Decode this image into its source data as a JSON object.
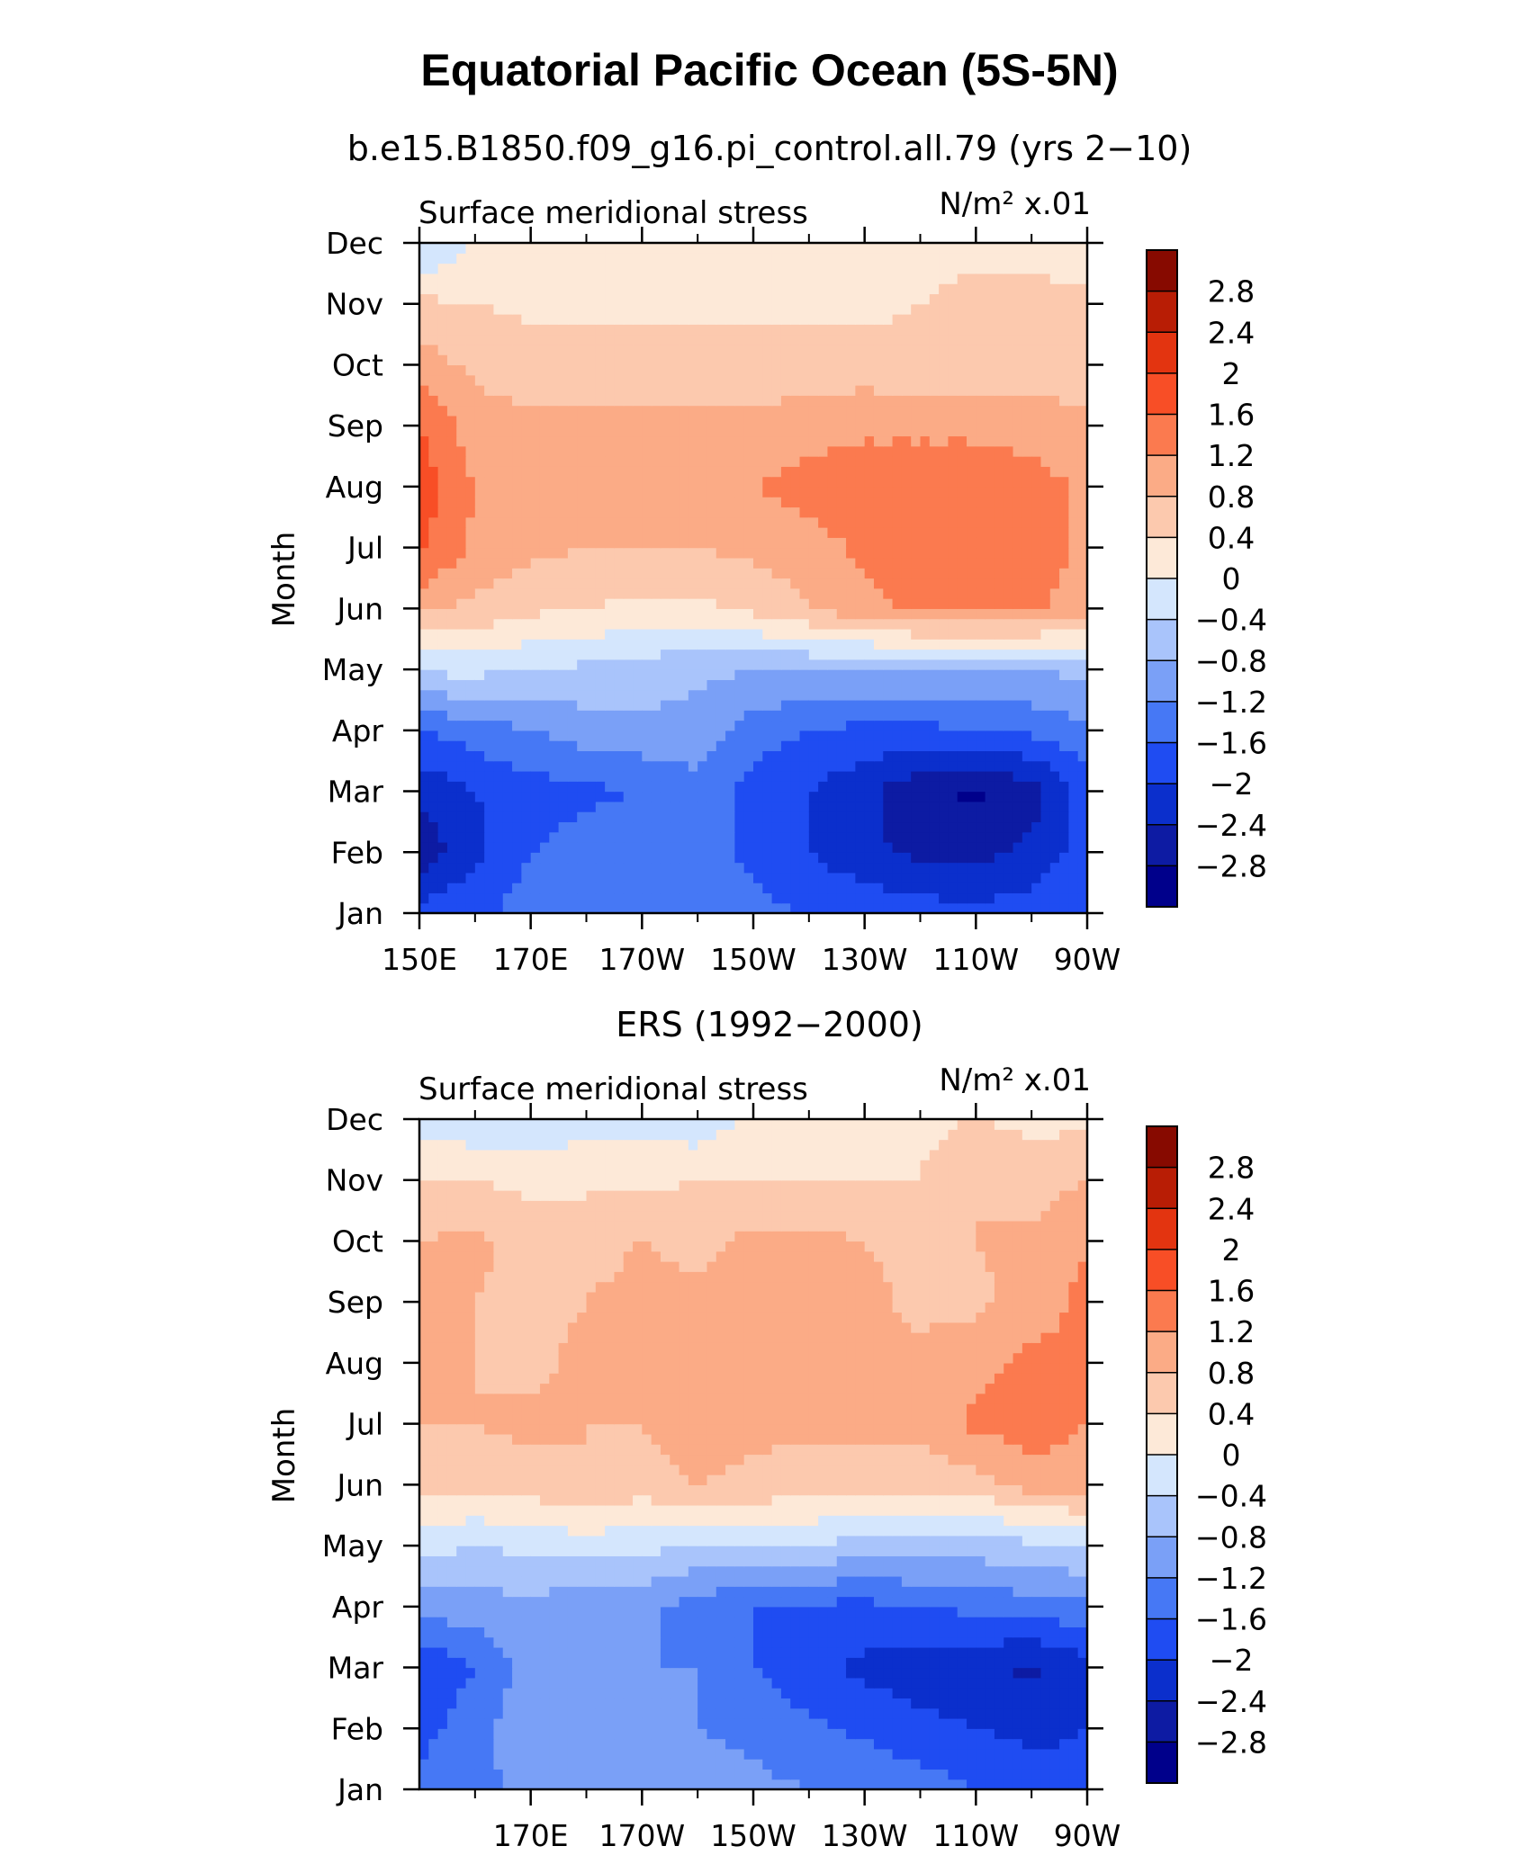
{
  "title": "Equatorial Pacific Ocean (5S-5N)",
  "colors": [
    "#00008b",
    "#0d1ba3",
    "#0b2fcc",
    "#1f4cf2",
    "#4678f5",
    "#7aa0f7",
    "#a9c4fb",
    "#d4e6fd",
    "#fde9d8",
    "#fcc9ae",
    "#fbab86",
    "#fb7a4f",
    "#f84e26",
    "#e33410",
    "#b81d05",
    "#870a00"
  ],
  "chart_data": [
    {
      "type": "heatmap",
      "subtitle": "b.e15.B1850.f09_g16.pi_control.all.79 (yrs 2−10)",
      "left_label": "Surface meridional stress",
      "units": "N/m² x.01",
      "ylabel": "Month",
      "xlabel": "",
      "x_ticks": [
        "150E",
        "170E",
        "170W",
        "150W",
        "130W",
        "110W",
        "90W"
      ],
      "x_tick_lon": [
        150,
        170,
        190,
        210,
        230,
        250,
        270
      ],
      "y_ticks": [
        "Jan",
        "Feb",
        "Mar",
        "Apr",
        "May",
        "Jun",
        "Jul",
        "Aug",
        "Sep",
        "Oct",
        "Nov",
        "Dec"
      ],
      "xlim": [
        150,
        270
      ],
      "ylim": [
        1,
        12
      ],
      "colorbar_levels": [
        "2.8",
        "2.4",
        "2",
        "1.6",
        "1.2",
        "0.8",
        "0.4",
        "0",
        "−0.4",
        "−0.8",
        "−1.2",
        "−1.6",
        "−2",
        "−2.4",
        "−2.8"
      ],
      "lons": [
        150,
        160,
        170,
        180,
        190,
        200,
        210,
        220,
        230,
        240,
        250,
        260,
        270
      ],
      "values": [
        [
          -1.8,
          -1.7,
          -1.4,
          -1.3,
          -1.2,
          -1.3,
          -1.5,
          -1.6,
          -1.7,
          -1.8,
          -1.9,
          -1.8,
          -1.6
        ],
        [
          -2.7,
          -2.1,
          -1.6,
          -1.4,
          -1.3,
          -1.4,
          -1.7,
          -2.0,
          -2.3,
          -2.5,
          -2.5,
          -2.3,
          -1.8
        ],
        [
          -2.3,
          -2.0,
          -1.8,
          -1.7,
          -1.6,
          -1.3,
          -1.8,
          -2.0,
          -2.3,
          -2.7,
          -2.9,
          -2.6,
          -1.8
        ],
        [
          -1.6,
          -1.4,
          -1.2,
          -1.0,
          -0.9,
          -1.0,
          -1.4,
          -1.6,
          -1.7,
          -1.7,
          -1.6,
          -1.5,
          -1.3
        ],
        [
          -0.3,
          -0.3,
          -0.4,
          -0.5,
          -0.6,
          -0.7,
          -0.8,
          -0.8,
          -0.8,
          -0.8,
          -0.8,
          -0.8,
          -0.7
        ],
        [
          0.9,
          0.7,
          0.5,
          0.4,
          0.3,
          0.3,
          0.5,
          0.8,
          1.1,
          1.3,
          1.3,
          1.3,
          1.0
        ],
        [
          1.7,
          1.1,
          0.9,
          0.8,
          0.8,
          0.8,
          0.9,
          1.0,
          1.3,
          1.4,
          1.4,
          1.4,
          1.1
        ],
        [
          1.8,
          1.2,
          1.0,
          1.0,
          1.0,
          1.0,
          1.2,
          1.4,
          1.5,
          1.5,
          1.5,
          1.4,
          1.1
        ],
        [
          1.6,
          1.0,
          0.9,
          0.9,
          0.9,
          0.9,
          0.9,
          1.0,
          1.1,
          1.1,
          1.1,
          1.0,
          0.9
        ],
        [
          1.0,
          0.7,
          0.6,
          0.6,
          0.6,
          0.6,
          0.6,
          0.6,
          0.6,
          0.5,
          0.5,
          0.6,
          0.6
        ],
        [
          0.5,
          0.4,
          0.3,
          0.3,
          0.3,
          0.3,
          0.3,
          0.3,
          0.3,
          0.4,
          0.5,
          0.5,
          0.5
        ],
        [
          -0.5,
          0.1,
          0.2,
          0.2,
          0.2,
          0.2,
          0.2,
          0.2,
          0.2,
          0.3,
          0.3,
          0.3,
          0.2
        ]
      ]
    },
    {
      "type": "heatmap",
      "subtitle": "ERS (1992−2000)",
      "left_label": "Surface meridional stress",
      "units": "N/m² x.01",
      "ylabel": "Month",
      "xlabel": "",
      "x_ticks": [
        "170E",
        "170W",
        "150W",
        "130W",
        "110W",
        "90W"
      ],
      "x_tick_lon": [
        170,
        190,
        210,
        230,
        250,
        270
      ],
      "y_ticks": [
        "Jan",
        "Feb",
        "Mar",
        "Apr",
        "May",
        "Jun",
        "Jul",
        "Aug",
        "Sep",
        "Oct",
        "Nov",
        "Dec"
      ],
      "xlim": [
        150,
        270
      ],
      "ylim": [
        1,
        12
      ],
      "colorbar_levels": [
        "2.8",
        "2.4",
        "2",
        "1.6",
        "1.2",
        "0.8",
        "0.4",
        "0",
        "−0.4",
        "−0.8",
        "−1.2",
        "−1.6",
        "−2",
        "−2.4",
        "−2.8"
      ],
      "lons": [
        150,
        160,
        170,
        180,
        190,
        200,
        210,
        220,
        230,
        240,
        250,
        260,
        270
      ],
      "values": [
        [
          -1.4,
          -1.3,
          -1.1,
          -0.9,
          -0.8,
          -1.0,
          -1.1,
          -1.2,
          -1.2,
          -1.4,
          -1.6,
          -1.8,
          -1.9
        ],
        [
          -1.8,
          -1.3,
          -1.0,
          -1.1,
          -1.0,
          -1.2,
          -1.3,
          -1.5,
          -1.7,
          -1.9,
          -2.0,
          -2.1,
          -2.0
        ],
        [
          -2.0,
          -1.6,
          -1.0,
          -1.1,
          -1.2,
          -1.2,
          -1.6,
          -1.9,
          -2.1,
          -2.2,
          -2.3,
          -2.5,
          -2.2
        ],
        [
          -1.0,
          -1.0,
          -0.9,
          -1.1,
          -1.1,
          -1.4,
          -1.6,
          -1.7,
          -1.7,
          -1.6,
          -1.5,
          -1.4,
          -1.3
        ],
        [
          -0.2,
          -0.4,
          -0.3,
          -0.2,
          -0.3,
          -0.4,
          -0.4,
          -0.4,
          -0.6,
          -0.6,
          -0.6,
          -0.5,
          -0.4
        ],
        [
          0.5,
          0.5,
          0.6,
          0.8,
          0.6,
          0.8,
          0.7,
          0.6,
          0.6,
          0.6,
          0.6,
          1.0,
          1.0
        ],
        [
          0.8,
          0.8,
          0.9,
          0.8,
          0.8,
          1.0,
          0.9,
          0.9,
          0.9,
          0.9,
          1.3,
          1.4,
          1.2
        ],
        [
          1.0,
          0.8,
          0.7,
          0.9,
          0.9,
          0.9,
          1.0,
          1.0,
          1.0,
          0.9,
          1.1,
          1.3,
          1.3
        ],
        [
          1.2,
          0.8,
          0.7,
          0.8,
          0.9,
          0.9,
          0.9,
          0.9,
          0.9,
          0.7,
          0.7,
          1.0,
          1.3
        ],
        [
          0.8,
          0.9,
          0.6,
          0.7,
          0.8,
          0.7,
          0.9,
          0.9,
          0.8,
          0.7,
          0.8,
          0.9,
          1.2
        ],
        [
          0.4,
          0.4,
          0.3,
          0.3,
          0.3,
          0.4,
          0.4,
          0.4,
          0.4,
          0.4,
          0.8,
          0.6,
          0.8
        ],
        [
          -0.2,
          -0.3,
          -0.4,
          -0.1,
          -0.1,
          -0.3,
          0.1,
          0.1,
          0.2,
          0.3,
          0.4,
          0.3,
          0.3
        ]
      ]
    }
  ]
}
